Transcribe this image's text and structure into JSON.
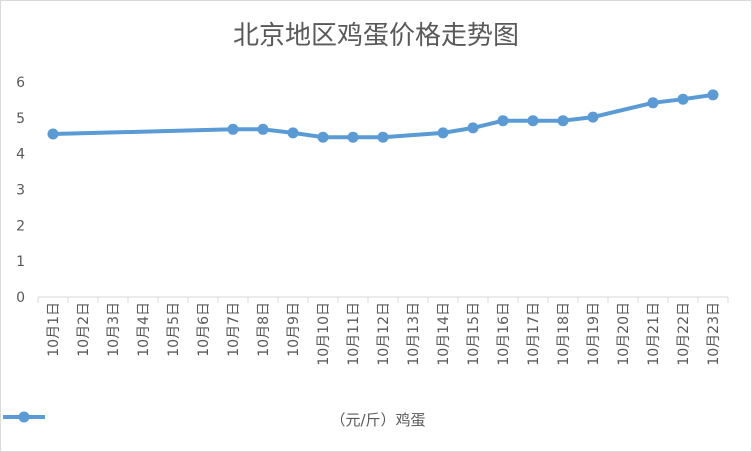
{
  "chart_data": {
    "type": "line",
    "title": "北京地区鸡蛋价格走势图",
    "categories": [
      "10月1日",
      "10月2日",
      "10月3日",
      "10月4日",
      "10月5日",
      "10月6日",
      "10月7日",
      "10月8日",
      "10月9日",
      "10月10日",
      "10月11日",
      "10月12日",
      "10月13日",
      "10月14日",
      "10月15日",
      "10月16日",
      "10月17日",
      "10月18日",
      "10月19日",
      "10月20日",
      "10月21日",
      "10月22日",
      "10月23日"
    ],
    "series": [
      {
        "name": "（元/斤）鸡蛋",
        "color": "#5b9bd5",
        "values": [
          4.55,
          null,
          null,
          null,
          null,
          null,
          4.68,
          4.68,
          4.58,
          4.46,
          4.46,
          4.46,
          null,
          4.58,
          4.72,
          4.92,
          4.92,
          4.92,
          5.02,
          null,
          5.42,
          5.52,
          5.64
        ]
      }
    ],
    "ylim": [
      0,
      6
    ],
    "yticks": [
      0,
      1,
      2,
      3,
      4,
      5,
      6
    ],
    "grid": false,
    "legend": "bottom"
  }
}
